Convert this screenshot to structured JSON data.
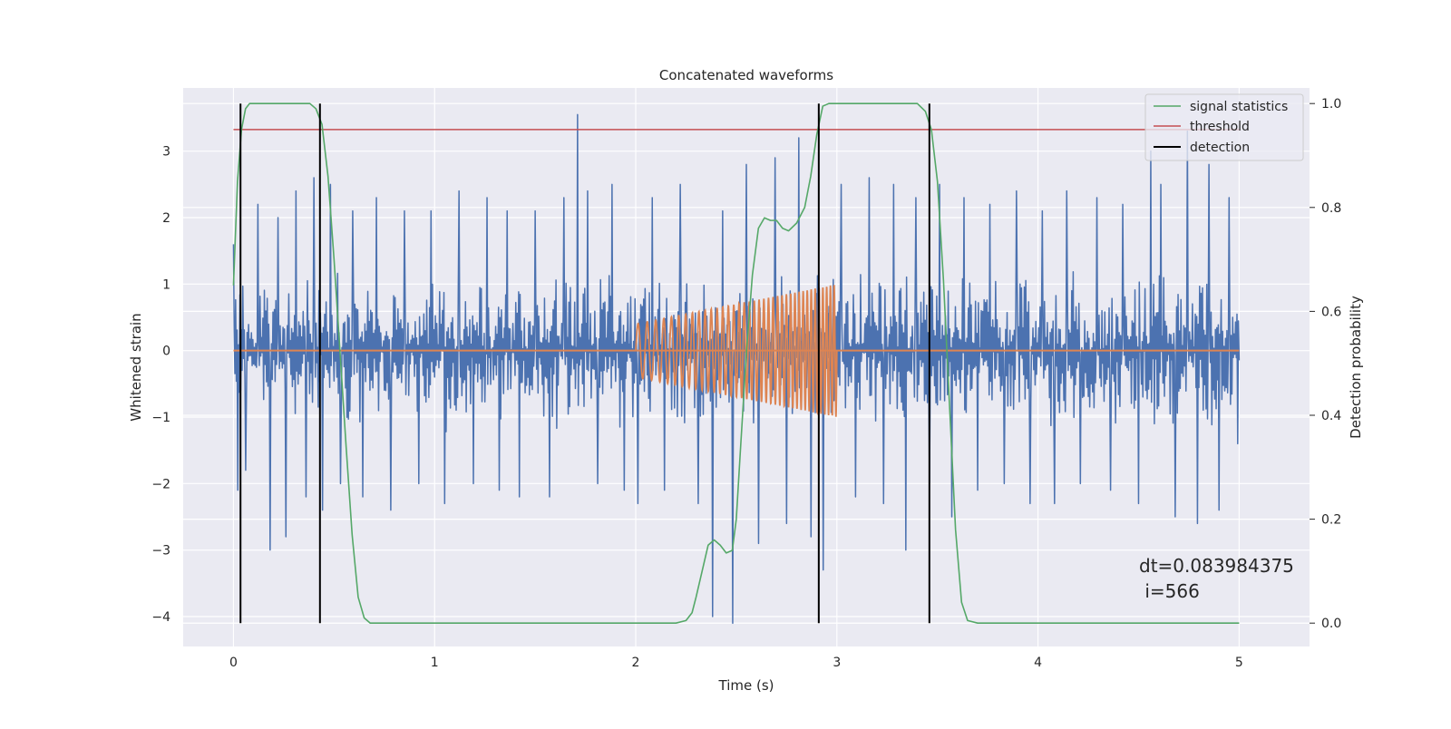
{
  "chart_data": {
    "type": "line",
    "title": "Concatenated waveforms",
    "xlabel": "Time (s)",
    "ylabel": "Whitened strain",
    "ylabel_right": "Detection probability",
    "xlim": [
      -0.25,
      5.35
    ],
    "ylim": [
      -4.45,
      3.95
    ],
    "ylim_right": [
      -0.045,
      1.03
    ],
    "xticks": [
      0,
      1,
      2,
      3,
      4,
      5
    ],
    "xtick_labels": [
      "0",
      "1",
      "2",
      "3",
      "4",
      "5"
    ],
    "yticks": [
      -4,
      -3,
      -2,
      -1,
      0,
      1,
      2,
      3
    ],
    "ytick_labels": [
      "−4",
      "−3",
      "−2",
      "−1",
      "0",
      "1",
      "2",
      "3"
    ],
    "yticks_right": [
      0.0,
      0.2,
      0.4,
      0.6,
      0.8,
      1.0
    ],
    "ytick_labels_right": [
      "0.0",
      "0.2",
      "0.4",
      "0.6",
      "0.8",
      "1.0"
    ],
    "grid": true,
    "legend_position": "top-right",
    "legend": [
      "signal statistics",
      "threshold",
      "detection"
    ],
    "colors": {
      "noise": "#4c72b0",
      "injection": "#dd8452",
      "statistic": "#55a868",
      "threshold": "#c44e52",
      "detection": "#000000",
      "background": "#eaeaf2"
    },
    "noise": {
      "x_start": 0,
      "x_end": 5,
      "amplitude": 0.8,
      "spikes": [
        {
          "x": 0.0,
          "y": 1.6
        },
        {
          "x": 0.02,
          "y": -2.1
        },
        {
          "x": 0.06,
          "y": -1.8
        },
        {
          "x": 0.12,
          "y": 2.2
        },
        {
          "x": 0.18,
          "y": -3.0
        },
        {
          "x": 0.22,
          "y": 2.0
        },
        {
          "x": 0.26,
          "y": -2.8
        },
        {
          "x": 0.31,
          "y": 2.4
        },
        {
          "x": 0.36,
          "y": -2.2
        },
        {
          "x": 0.4,
          "y": 2.6
        },
        {
          "x": 0.44,
          "y": -2.4
        },
        {
          "x": 0.48,
          "y": 2.5
        },
        {
          "x": 0.53,
          "y": -2.0
        },
        {
          "x": 0.59,
          "y": 2.1
        },
        {
          "x": 0.64,
          "y": -2.2
        },
        {
          "x": 0.71,
          "y": 2.3
        },
        {
          "x": 0.78,
          "y": -2.4
        },
        {
          "x": 0.85,
          "y": 2.1
        },
        {
          "x": 0.92,
          "y": -2.0
        },
        {
          "x": 0.98,
          "y": 2.1
        },
        {
          "x": 1.05,
          "y": -2.3
        },
        {
          "x": 1.12,
          "y": 2.4
        },
        {
          "x": 1.19,
          "y": -2.0
        },
        {
          "x": 1.26,
          "y": 2.3
        },
        {
          "x": 1.32,
          "y": -2.1
        },
        {
          "x": 1.36,
          "y": 2.1
        },
        {
          "x": 1.42,
          "y": -2.2
        },
        {
          "x": 1.5,
          "y": 2.1
        },
        {
          "x": 1.57,
          "y": -2.2
        },
        {
          "x": 1.64,
          "y": 2.3
        },
        {
          "x": 1.71,
          "y": 3.55
        },
        {
          "x": 1.76,
          "y": 2.4
        },
        {
          "x": 1.81,
          "y": -2.0
        },
        {
          "x": 1.88,
          "y": 2.5
        },
        {
          "x": 1.94,
          "y": -2.1
        },
        {
          "x": 2.01,
          "y": -2.3
        },
        {
          "x": 2.08,
          "y": 2.3
        },
        {
          "x": 2.14,
          "y": -2.1
        },
        {
          "x": 2.22,
          "y": 2.5
        },
        {
          "x": 2.31,
          "y": -2.3
        },
        {
          "x": 2.38,
          "y": -4.0
        },
        {
          "x": 2.43,
          "y": 2.1
        },
        {
          "x": 2.48,
          "y": -4.1
        },
        {
          "x": 2.55,
          "y": 2.8
        },
        {
          "x": 2.61,
          "y": -2.9
        },
        {
          "x": 2.69,
          "y": 2.9
        },
        {
          "x": 2.75,
          "y": -2.6
        },
        {
          "x": 2.81,
          "y": 3.2
        },
        {
          "x": 2.87,
          "y": -2.8
        },
        {
          "x": 2.93,
          "y": -3.3
        },
        {
          "x": 3.02,
          "y": 2.5
        },
        {
          "x": 3.09,
          "y": -2.2
        },
        {
          "x": 3.16,
          "y": 2.6
        },
        {
          "x": 3.23,
          "y": -2.3
        },
        {
          "x": 3.28,
          "y": 2.5
        },
        {
          "x": 3.34,
          "y": -3.0
        },
        {
          "x": 3.39,
          "y": 2.3
        },
        {
          "x": 3.46,
          "y": -2.0
        },
        {
          "x": 3.51,
          "y": 2.5
        },
        {
          "x": 3.57,
          "y": -2.5
        },
        {
          "x": 3.63,
          "y": 2.3
        },
        {
          "x": 3.7,
          "y": -2.1
        },
        {
          "x": 3.76,
          "y": 2.2
        },
        {
          "x": 3.83,
          "y": -2.0
        },
        {
          "x": 3.89,
          "y": 2.4
        },
        {
          "x": 3.96,
          "y": -2.3
        },
        {
          "x": 4.02,
          "y": 2.1
        },
        {
          "x": 4.08,
          "y": -2.3
        },
        {
          "x": 4.14,
          "y": 2.4
        },
        {
          "x": 4.21,
          "y": -2.0
        },
        {
          "x": 4.29,
          "y": 2.3
        },
        {
          "x": 4.36,
          "y": -2.1
        },
        {
          "x": 4.42,
          "y": 2.2
        },
        {
          "x": 4.5,
          "y": -2.3
        },
        {
          "x": 4.56,
          "y": 3.0
        },
        {
          "x": 4.61,
          "y": 2.5
        },
        {
          "x": 4.68,
          "y": -2.5
        },
        {
          "x": 4.74,
          "y": 3.3
        },
        {
          "x": 4.79,
          "y": -2.6
        },
        {
          "x": 4.85,
          "y": 2.8
        },
        {
          "x": 4.9,
          "y": -2.4
        },
        {
          "x": 4.95,
          "y": 2.3
        },
        {
          "x": 4.99,
          "y": -1.4
        }
      ]
    },
    "injection": {
      "x_start": 2.0,
      "x_end": 3.0,
      "amplitude_start": 0.4,
      "amplitude_end": 1.0,
      "cycles": 38
    },
    "baseline": {
      "x_start": 0,
      "x_end": 5,
      "y": 0
    },
    "statistic": {
      "x": [
        0.0,
        0.02,
        0.04,
        0.06,
        0.08,
        0.1,
        0.15,
        0.2,
        0.3,
        0.38,
        0.41,
        0.44,
        0.47,
        0.5,
        0.53,
        0.56,
        0.59,
        0.62,
        0.65,
        0.68,
        0.75,
        1.0,
        1.5,
        2.0,
        2.2,
        2.25,
        2.28,
        2.3,
        2.33,
        2.36,
        2.39,
        2.42,
        2.45,
        2.48,
        2.5,
        2.52,
        2.55,
        2.58,
        2.61,
        2.64,
        2.67,
        2.7,
        2.73,
        2.76,
        2.8,
        2.84,
        2.87,
        2.9,
        2.93,
        2.96,
        3.0,
        3.1,
        3.2,
        3.3,
        3.4,
        3.44,
        3.47,
        3.5,
        3.53,
        3.56,
        3.59,
        3.62,
        3.65,
        3.7,
        4.0,
        4.5,
        5.0
      ],
      "y": [
        0.65,
        0.85,
        0.95,
        0.99,
        1.0,
        1.0,
        1.0,
        1.0,
        1.0,
        1.0,
        0.99,
        0.96,
        0.86,
        0.7,
        0.52,
        0.34,
        0.17,
        0.05,
        0.01,
        0.0,
        0.0,
        0.0,
        0.0,
        0.0,
        0.0,
        0.005,
        0.02,
        0.05,
        0.1,
        0.15,
        0.16,
        0.15,
        0.135,
        0.14,
        0.2,
        0.33,
        0.52,
        0.67,
        0.76,
        0.78,
        0.775,
        0.775,
        0.76,
        0.755,
        0.77,
        0.8,
        0.86,
        0.94,
        0.995,
        1.0,
        1.0,
        1.0,
        1.0,
        1.0,
        1.0,
        0.985,
        0.95,
        0.85,
        0.66,
        0.42,
        0.18,
        0.04,
        0.005,
        0.0,
        0.0,
        0.0,
        0.0
      ]
    },
    "threshold": {
      "x_start": 0,
      "x_end": 5,
      "y": 0.95
    },
    "detections": [
      0.035,
      0.43,
      2.91,
      3.46
    ],
    "annotation": [
      "dt=0.083984375",
      " i=566"
    ]
  }
}
